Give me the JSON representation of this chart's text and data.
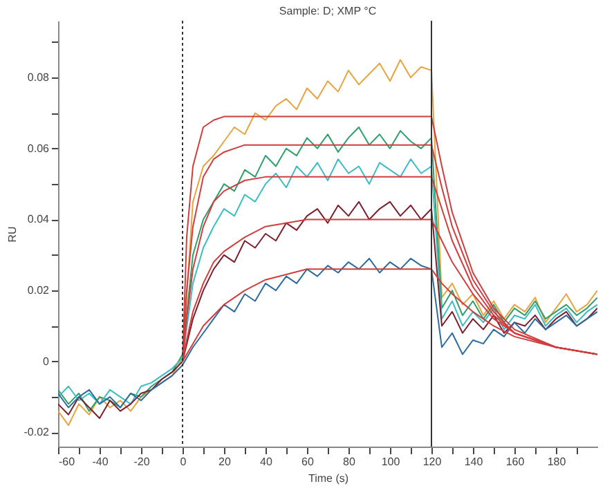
{
  "chart_data": {
    "type": "line",
    "title": "Sample: D; XMP °C",
    "xlabel": "Time (s)",
    "ylabel": "RU",
    "x": [
      -60,
      -55,
      -50,
      -45,
      -40,
      -35,
      -30,
      -25,
      -20,
      -15,
      -10,
      -5,
      0,
      5,
      10,
      15,
      20,
      25,
      30,
      35,
      40,
      45,
      50,
      55,
      60,
      65,
      70,
      75,
      80,
      85,
      90,
      95,
      100,
      105,
      110,
      115,
      120,
      125,
      130,
      135,
      140,
      145,
      150,
      155,
      160,
      165,
      170,
      175,
      180,
      185,
      190,
      195,
      200
    ],
    "series": [
      {
        "color": "#e8a33d",
        "values": [
          -0.014,
          -0.018,
          -0.012,
          -0.015,
          -0.01,
          -0.013,
          -0.011,
          -0.014,
          -0.01,
          -0.008,
          -0.006,
          -0.004,
          0.001,
          0.045,
          0.055,
          0.058,
          0.062,
          0.066,
          0.064,
          0.07,
          0.068,
          0.072,
          0.074,
          0.071,
          0.077,
          0.074,
          0.079,
          0.076,
          0.082,
          0.078,
          0.081,
          0.084,
          0.079,
          0.085,
          0.08,
          0.083,
          0.082,
          0.018,
          0.022,
          0.016,
          0.019,
          0.013,
          0.017,
          0.012,
          0.016,
          0.014,
          0.018,
          0.011,
          0.015,
          0.019,
          0.014,
          0.016,
          0.02
        ]
      },
      {
        "color": "#2e9e6a",
        "values": [
          -0.008,
          -0.012,
          -0.009,
          -0.014,
          -0.01,
          -0.011,
          -0.013,
          -0.009,
          -0.01,
          -0.007,
          -0.005,
          -0.003,
          0.002,
          0.03,
          0.04,
          0.045,
          0.05,
          0.048,
          0.054,
          0.052,
          0.058,
          0.055,
          0.06,
          0.058,
          0.063,
          0.06,
          0.064,
          0.059,
          0.063,
          0.066,
          0.061,
          0.064,
          0.06,
          0.065,
          0.062,
          0.06,
          0.063,
          0.015,
          0.02,
          0.013,
          0.017,
          0.012,
          0.016,
          0.011,
          0.015,
          0.013,
          0.017,
          0.012,
          0.014,
          0.016,
          0.013,
          0.015,
          0.018
        ]
      },
      {
        "color": "#3bbcc4",
        "values": [
          -0.01,
          -0.007,
          -0.011,
          -0.009,
          -0.012,
          -0.008,
          -0.01,
          -0.012,
          -0.007,
          -0.006,
          -0.004,
          -0.002,
          0.001,
          0.022,
          0.032,
          0.038,
          0.043,
          0.041,
          0.047,
          0.045,
          0.05,
          0.053,
          0.049,
          0.055,
          0.052,
          0.056,
          0.051,
          0.057,
          0.053,
          0.055,
          0.05,
          0.056,
          0.054,
          0.052,
          0.057,
          0.053,
          0.055,
          0.012,
          0.017,
          0.01,
          0.014,
          0.011,
          0.015,
          0.009,
          0.013,
          0.012,
          0.016,
          0.01,
          0.013,
          0.015,
          0.011,
          0.014,
          0.016
        ]
      },
      {
        "color": "#7a1f2b",
        "values": [
          -0.012,
          -0.015,
          -0.01,
          -0.013,
          -0.016,
          -0.011,
          -0.014,
          -0.012,
          -0.009,
          -0.008,
          -0.005,
          -0.003,
          0.0,
          0.012,
          0.02,
          0.026,
          0.03,
          0.028,
          0.034,
          0.032,
          0.036,
          0.034,
          0.039,
          0.037,
          0.041,
          0.043,
          0.039,
          0.044,
          0.041,
          0.045,
          0.04,
          0.043,
          0.045,
          0.041,
          0.044,
          0.04,
          0.043,
          0.01,
          0.014,
          0.008,
          0.012,
          0.009,
          0.013,
          0.008,
          0.011,
          0.01,
          0.013,
          0.009,
          0.012,
          0.014,
          0.01,
          0.012,
          0.015
        ]
      },
      {
        "color": "#2b6c9e",
        "values": [
          -0.009,
          -0.013,
          -0.01,
          -0.008,
          -0.012,
          -0.01,
          -0.013,
          -0.009,
          -0.011,
          -0.008,
          -0.006,
          -0.004,
          -0.001,
          0.004,
          0.008,
          0.012,
          0.016,
          0.014,
          0.019,
          0.017,
          0.022,
          0.02,
          0.024,
          0.022,
          0.026,
          0.024,
          0.027,
          0.025,
          0.028,
          0.026,
          0.029,
          0.025,
          0.028,
          0.026,
          0.029,
          0.027,
          0.026,
          0.004,
          0.008,
          0.002,
          0.006,
          0.005,
          0.009,
          0.007,
          0.011,
          0.008,
          0.012,
          0.009,
          0.011,
          0.013,
          0.01,
          0.012,
          0.014
        ]
      },
      {
        "color": "#d23c3c",
        "x": [
          0,
          2,
          5,
          10,
          15,
          20,
          30,
          40,
          60,
          120,
          125,
          130,
          140,
          150,
          160,
          180,
          200
        ],
        "values": [
          0,
          0.035,
          0.055,
          0.066,
          0.068,
          0.069,
          0.069,
          0.069,
          0.069,
          0.069,
          0.055,
          0.042,
          0.025,
          0.015,
          0.009,
          0.004,
          0.002
        ]
      },
      {
        "color": "#d23c3c",
        "x": [
          0,
          2,
          5,
          10,
          15,
          20,
          30,
          40,
          60,
          120,
          125,
          130,
          140,
          150,
          160,
          180,
          200
        ],
        "values": [
          0,
          0.02,
          0.038,
          0.052,
          0.057,
          0.059,
          0.061,
          0.061,
          0.061,
          0.061,
          0.049,
          0.038,
          0.023,
          0.014,
          0.008,
          0.004,
          0.002
        ]
      },
      {
        "color": "#d23c3c",
        "x": [
          0,
          2,
          5,
          10,
          15,
          20,
          30,
          40,
          60,
          120,
          125,
          130,
          140,
          150,
          160,
          180,
          200
        ],
        "values": [
          0,
          0.012,
          0.026,
          0.038,
          0.045,
          0.048,
          0.051,
          0.052,
          0.052,
          0.052,
          0.043,
          0.034,
          0.021,
          0.013,
          0.008,
          0.004,
          0.002
        ]
      },
      {
        "color": "#d23c3c",
        "x": [
          0,
          2,
          5,
          10,
          15,
          20,
          30,
          40,
          60,
          120,
          125,
          130,
          140,
          150,
          160,
          180,
          200
        ],
        "values": [
          0,
          0.006,
          0.014,
          0.022,
          0.028,
          0.031,
          0.035,
          0.038,
          0.04,
          0.04,
          0.034,
          0.028,
          0.019,
          0.012,
          0.008,
          0.004,
          0.002
        ]
      },
      {
        "color": "#d23c3c",
        "x": [
          0,
          2,
          5,
          10,
          15,
          20,
          30,
          40,
          60,
          120,
          125,
          130,
          140,
          150,
          160,
          180,
          200
        ],
        "values": [
          0,
          0.002,
          0.005,
          0.01,
          0.013,
          0.016,
          0.02,
          0.023,
          0.026,
          0.026,
          0.022,
          0.019,
          0.014,
          0.01,
          0.007,
          0.004,
          0.002
        ]
      }
    ],
    "xlim": [
      -60,
      200
    ],
    "xticks": [
      -60,
      {
        "value": -50,
        "label": null
      },
      -40,
      {
        "value": -30,
        "label": null
      },
      -20,
      {
        "value": -10,
        "label": null
      },
      0,
      {
        "value": 10,
        "label": null
      },
      20,
      {
        "value": 30,
        "label": null
      },
      40,
      {
        "value": 50,
        "label": null
      },
      60,
      {
        "value": 70,
        "label": null
      },
      80,
      {
        "value": 90,
        "label": null
      },
      100,
      {
        "value": 110,
        "label": null
      },
      120,
      {
        "value": 130,
        "label": null
      },
      140,
      {
        "value": 150,
        "label": null
      },
      160,
      {
        "value": 170,
        "label": null
      },
      180,
      {
        "value": 190,
        "label": null
      }
    ],
    "ylim": [
      -0.024,
      0.096
    ],
    "yticks": [
      -0.02,
      {
        "value": -0.01,
        "label": null
      },
      0,
      {
        "value": 0.01,
        "label": null
      },
      0.02,
      {
        "value": 0.03,
        "label": null
      },
      0.04,
      {
        "value": 0.05,
        "label": null
      },
      0.06,
      {
        "value": 0.07,
        "label": null
      },
      0.08,
      {
        "value": 0.09,
        "label": null
      }
    ],
    "ref_lines": [
      {
        "axis": "x",
        "value": 0,
        "line_style": "dotted",
        "color": "#333333"
      },
      {
        "axis": "x",
        "value": 120,
        "line_style": "solid",
        "color": "#333333"
      }
    ],
    "grid": false
  }
}
